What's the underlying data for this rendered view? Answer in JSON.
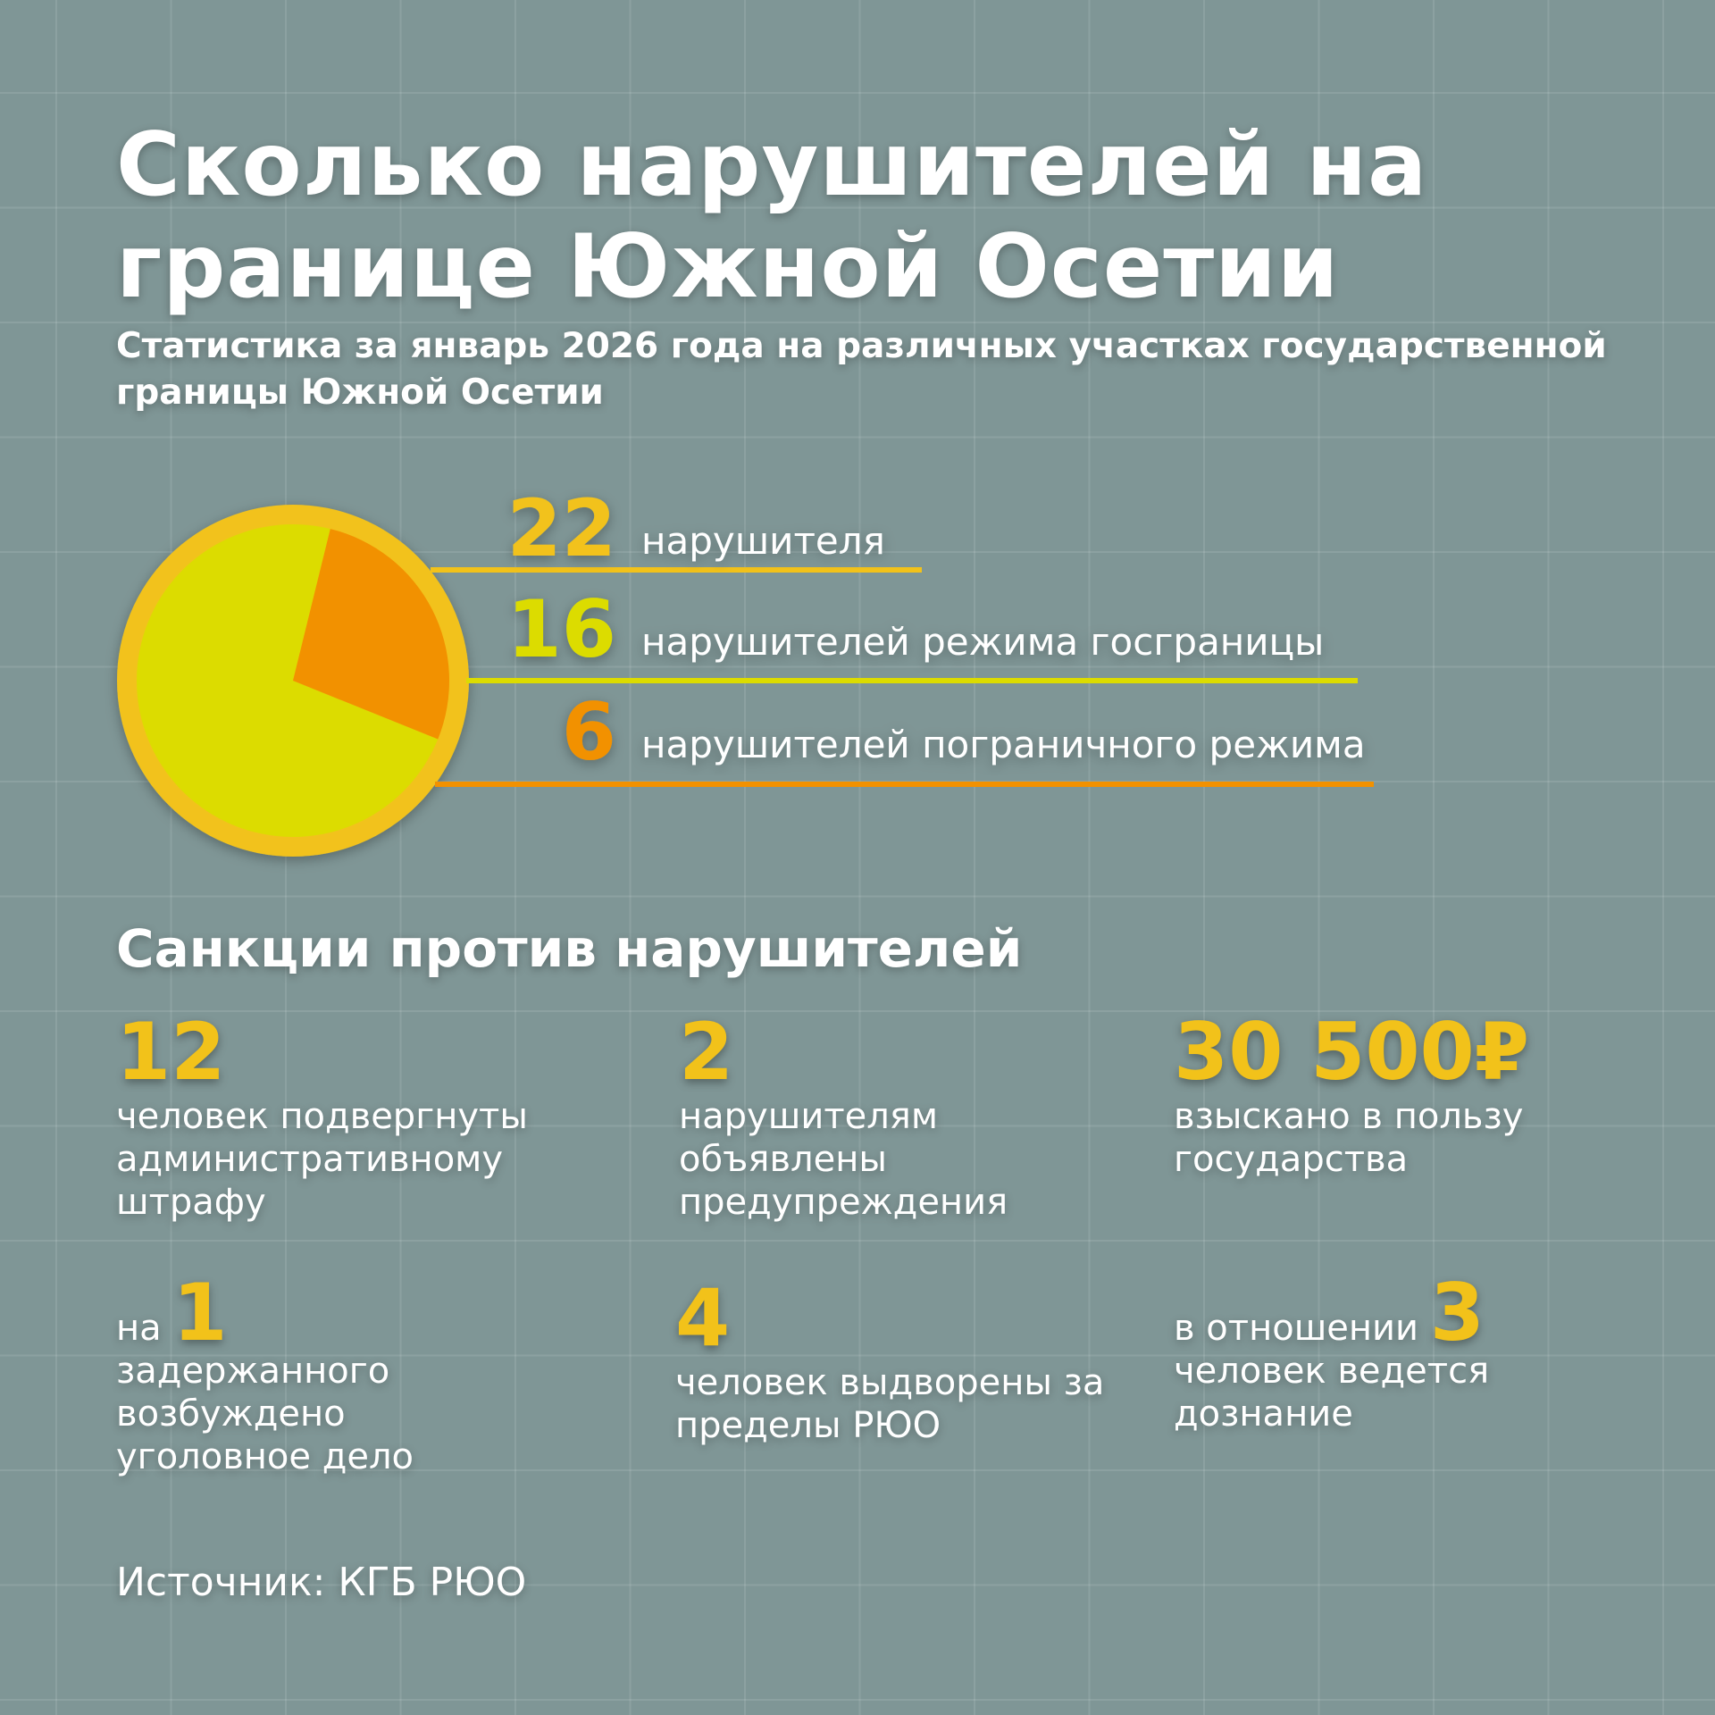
{
  "title": "Сколько нарушителей на границе Южной Осетии",
  "subtitle": "Статистика за январь 2026 года на различных участках государственной границы Южной Осетии",
  "colors": {
    "total": "#f2c21a",
    "state_border": "#dcdc00",
    "border_regime": "#f29100",
    "ring": "#f2c21a",
    "background": "#7f9696"
  },
  "chart_data": {
    "type": "pie",
    "total": {
      "value": "22",
      "label": "нарушителя"
    },
    "series": [
      {
        "value": 16,
        "display": "16",
        "label": "нарушителей режима госграницы",
        "color": "#dcdc00"
      },
      {
        "value": 6,
        "display": "6",
        "label": "нарушителей пограничного режима",
        "color": "#f29100"
      }
    ]
  },
  "sanctions": {
    "heading": "Санкции против нарушителей",
    "items": [
      {
        "number": "12",
        "text": "человек подвергнуты административному штрафу"
      },
      {
        "number": "2",
        "text": "нарушителям объявлены предупреждения"
      },
      {
        "number": "30 500₽",
        "text": "взыскано в пользу государства"
      },
      {
        "prefix": "на",
        "number": "1",
        "text": "задержанного возбуждено уголовное дело"
      },
      {
        "number": "4",
        "text": "человек выдворены за пределы РЮО"
      },
      {
        "prefix": "в отношении",
        "number": "3",
        "text": "человек ведется дознание"
      }
    ]
  },
  "source": "Источник: КГБ РЮО"
}
